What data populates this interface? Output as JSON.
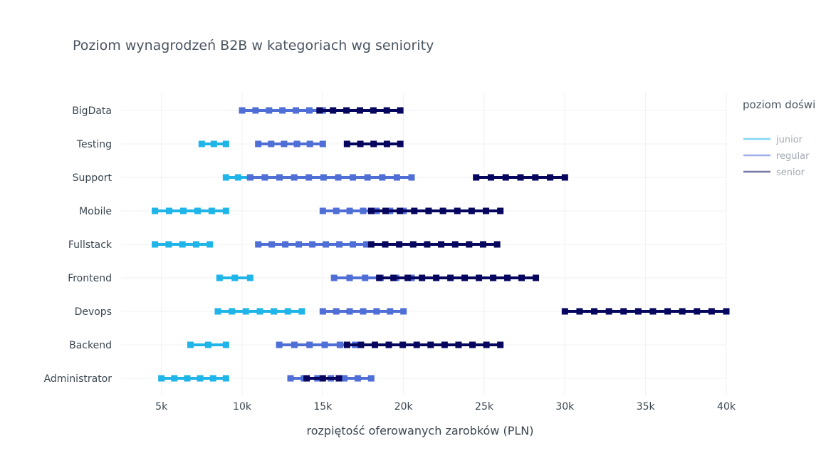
{
  "chart_data": {
    "type": "range-bar",
    "title": "Poziom wynagrodzeń B2B w kategoriach wg seniority",
    "xlabel": "rozpiętość oferowanych zarobków (PLN)",
    "ylabel": "",
    "xlim": [
      2500,
      40000
    ],
    "xticks": [
      5000,
      10000,
      15000,
      20000,
      25000,
      30000,
      35000,
      40000
    ],
    "xtick_labels": [
      "5k",
      "10k",
      "15k",
      "20k",
      "25k",
      "30k",
      "35k",
      "40k"
    ],
    "grid": true,
    "legend_position": "right",
    "legend_title": "poziom doświ",
    "categories": [
      "BigData",
      "Testing",
      "Support",
      "Mobile",
      "Fullstack",
      "Frontend",
      "Devops",
      "Backend",
      "Administrator"
    ],
    "series": [
      {
        "name": "junior",
        "color": "#1fb5e8",
        "ranges": {
          "Testing": [
            7500,
            9000
          ],
          "Support": [
            9000,
            10500
          ],
          "Mobile": [
            4600,
            9000
          ],
          "Fullstack": [
            4600,
            8000
          ],
          "Frontend": [
            8600,
            10500
          ],
          "Devops": [
            8500,
            13700
          ],
          "Backend": [
            6800,
            9000
          ],
          "Administrator": [
            5000,
            9000
          ]
        }
      },
      {
        "name": "regular",
        "color": "#4f6fd6",
        "ranges": {
          "BigData": [
            10000,
            15000
          ],
          "Testing": [
            11000,
            15000
          ],
          "Support": [
            10500,
            20500
          ],
          "Mobile": [
            15000,
            20000
          ],
          "Fullstack": [
            11000,
            17700
          ],
          "Frontend": [
            15700,
            20500
          ],
          "Devops": [
            15000,
            20000
          ],
          "Backend": [
            12300,
            17000
          ],
          "Administrator": [
            13000,
            18000
          ]
        }
      },
      {
        "name": "senior",
        "color": "#06065e",
        "ranges": {
          "BigData": [
            14800,
            19800
          ],
          "Testing": [
            16500,
            19800
          ],
          "Support": [
            24500,
            30000
          ],
          "Mobile": [
            18000,
            26000
          ],
          "Fullstack": [
            18000,
            25800
          ],
          "Frontend": [
            18500,
            28200
          ],
          "Devops": [
            30000,
            40000
          ],
          "Backend": [
            16500,
            26000
          ],
          "Administrator": [
            14000,
            16000
          ]
        }
      }
    ]
  }
}
